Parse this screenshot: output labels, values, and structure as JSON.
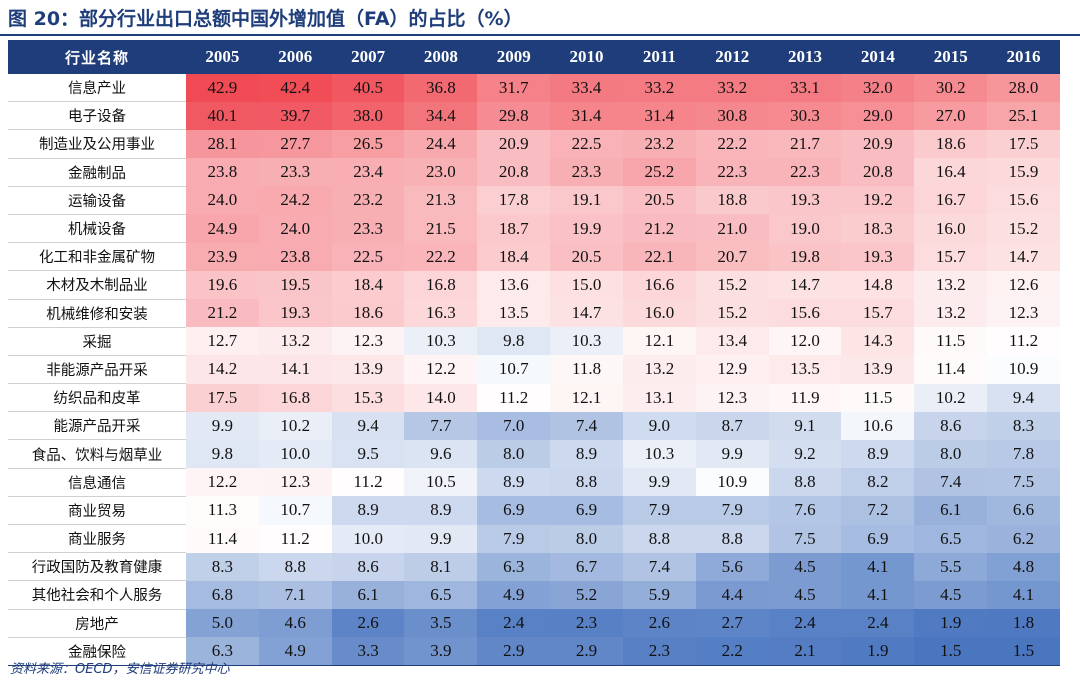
{
  "title": "图 20：部分行业出口总额中国外增加值（FA）的占比（%）",
  "source": "资料来源：OECD，安信证券研究中心",
  "colors": {
    "header_bg": "#1f3d7a",
    "high": "#f04b55",
    "mid": "#ffffff",
    "low": "#4a76c0"
  },
  "chart_data": {
    "type": "table",
    "header_label": "行业名称",
    "years": [
      "2005",
      "2006",
      "2007",
      "2008",
      "2009",
      "2010",
      "2011",
      "2012",
      "2013",
      "2014",
      "2015",
      "2016"
    ],
    "rows": [
      {
        "name": "信息产业",
        "values": [
          42.9,
          42.4,
          40.5,
          36.8,
          31.7,
          33.4,
          33.2,
          33.2,
          33.1,
          32.0,
          30.2,
          28.0
        ]
      },
      {
        "name": "电子设备",
        "values": [
          40.1,
          39.7,
          38.0,
          34.4,
          29.8,
          31.4,
          31.4,
          30.8,
          30.3,
          29.0,
          27.0,
          25.1
        ]
      },
      {
        "name": "制造业及公用事业",
        "values": [
          28.1,
          27.7,
          26.5,
          24.4,
          20.9,
          22.5,
          23.2,
          22.2,
          21.7,
          20.9,
          18.6,
          17.5
        ]
      },
      {
        "name": "金融制品",
        "values": [
          23.8,
          23.3,
          23.4,
          23.0,
          20.8,
          23.3,
          25.2,
          22.3,
          22.3,
          20.8,
          16.4,
          15.9
        ]
      },
      {
        "name": "运输设备",
        "values": [
          24.0,
          24.2,
          23.2,
          21.3,
          17.8,
          19.1,
          20.5,
          18.8,
          19.3,
          19.2,
          16.7,
          15.6
        ]
      },
      {
        "name": "机械设备",
        "values": [
          24.9,
          24.0,
          23.3,
          21.5,
          18.7,
          19.9,
          21.2,
          21.0,
          19.0,
          18.3,
          16.0,
          15.2
        ]
      },
      {
        "name": "化工和非金属矿物",
        "values": [
          23.9,
          23.8,
          22.5,
          22.2,
          18.4,
          20.5,
          22.1,
          20.7,
          19.8,
          19.3,
          15.7,
          14.7
        ]
      },
      {
        "name": "木材及木制品业",
        "values": [
          19.6,
          19.5,
          18.4,
          16.8,
          13.6,
          15.0,
          16.6,
          15.2,
          14.7,
          14.8,
          13.2,
          12.6
        ]
      },
      {
        "name": "机械维修和安装",
        "values": [
          21.2,
          19.3,
          18.6,
          16.3,
          13.5,
          14.7,
          16.0,
          15.2,
          15.6,
          15.7,
          13.2,
          12.3
        ]
      },
      {
        "name": "采掘",
        "values": [
          12.7,
          13.2,
          12.3,
          10.3,
          9.8,
          10.3,
          12.1,
          13.4,
          12.0,
          14.3,
          11.5,
          11.2
        ]
      },
      {
        "name": "非能源产品开采",
        "values": [
          14.2,
          14.1,
          13.9,
          12.2,
          10.7,
          11.8,
          13.2,
          12.9,
          13.5,
          13.9,
          11.4,
          10.9
        ]
      },
      {
        "name": "纺织品和皮革",
        "values": [
          17.5,
          16.8,
          15.3,
          14.0,
          11.2,
          12.1,
          13.1,
          12.3,
          11.9,
          11.5,
          10.2,
          9.4
        ]
      },
      {
        "name": "能源产品开采",
        "values": [
          9.9,
          10.2,
          9.4,
          7.7,
          7.0,
          7.4,
          9.0,
          8.7,
          9.1,
          10.6,
          8.6,
          8.3
        ]
      },
      {
        "name": "食品、饮料与烟草业",
        "values": [
          9.8,
          10.0,
          9.5,
          9.6,
          8.0,
          8.9,
          10.3,
          9.9,
          9.2,
          8.9,
          8.0,
          7.8
        ]
      },
      {
        "name": "信息通信",
        "values": [
          12.2,
          12.3,
          11.2,
          10.5,
          8.9,
          8.8,
          9.9,
          10.9,
          8.8,
          8.2,
          7.4,
          7.5
        ]
      },
      {
        "name": "商业贸易",
        "values": [
          11.3,
          10.7,
          8.9,
          8.9,
          6.9,
          6.9,
          7.9,
          7.9,
          7.6,
          7.2,
          6.1,
          6.6
        ]
      },
      {
        "name": "商业服务",
        "values": [
          11.4,
          11.2,
          10.0,
          9.9,
          7.9,
          8.0,
          8.8,
          8.8,
          7.5,
          6.9,
          6.5,
          6.2
        ]
      },
      {
        "name": "行政国防及教育健康",
        "values": [
          8.3,
          8.8,
          8.6,
          8.1,
          6.3,
          6.7,
          7.4,
          5.6,
          4.5,
          4.1,
          5.5,
          4.8
        ]
      },
      {
        "name": "其他社会和个人服务",
        "values": [
          6.8,
          7.1,
          6.1,
          6.5,
          4.9,
          5.2,
          5.9,
          4.4,
          4.5,
          4.1,
          4.5,
          4.1
        ]
      },
      {
        "name": "房地产",
        "values": [
          5.0,
          4.6,
          2.6,
          3.5,
          2.4,
          2.3,
          2.6,
          2.7,
          2.4,
          2.4,
          1.9,
          1.8
        ]
      },
      {
        "name": "金融保险",
        "values": [
          6.3,
          4.9,
          3.3,
          3.9,
          2.9,
          2.9,
          2.3,
          2.2,
          2.1,
          1.9,
          1.5,
          1.5
        ]
      }
    ]
  }
}
